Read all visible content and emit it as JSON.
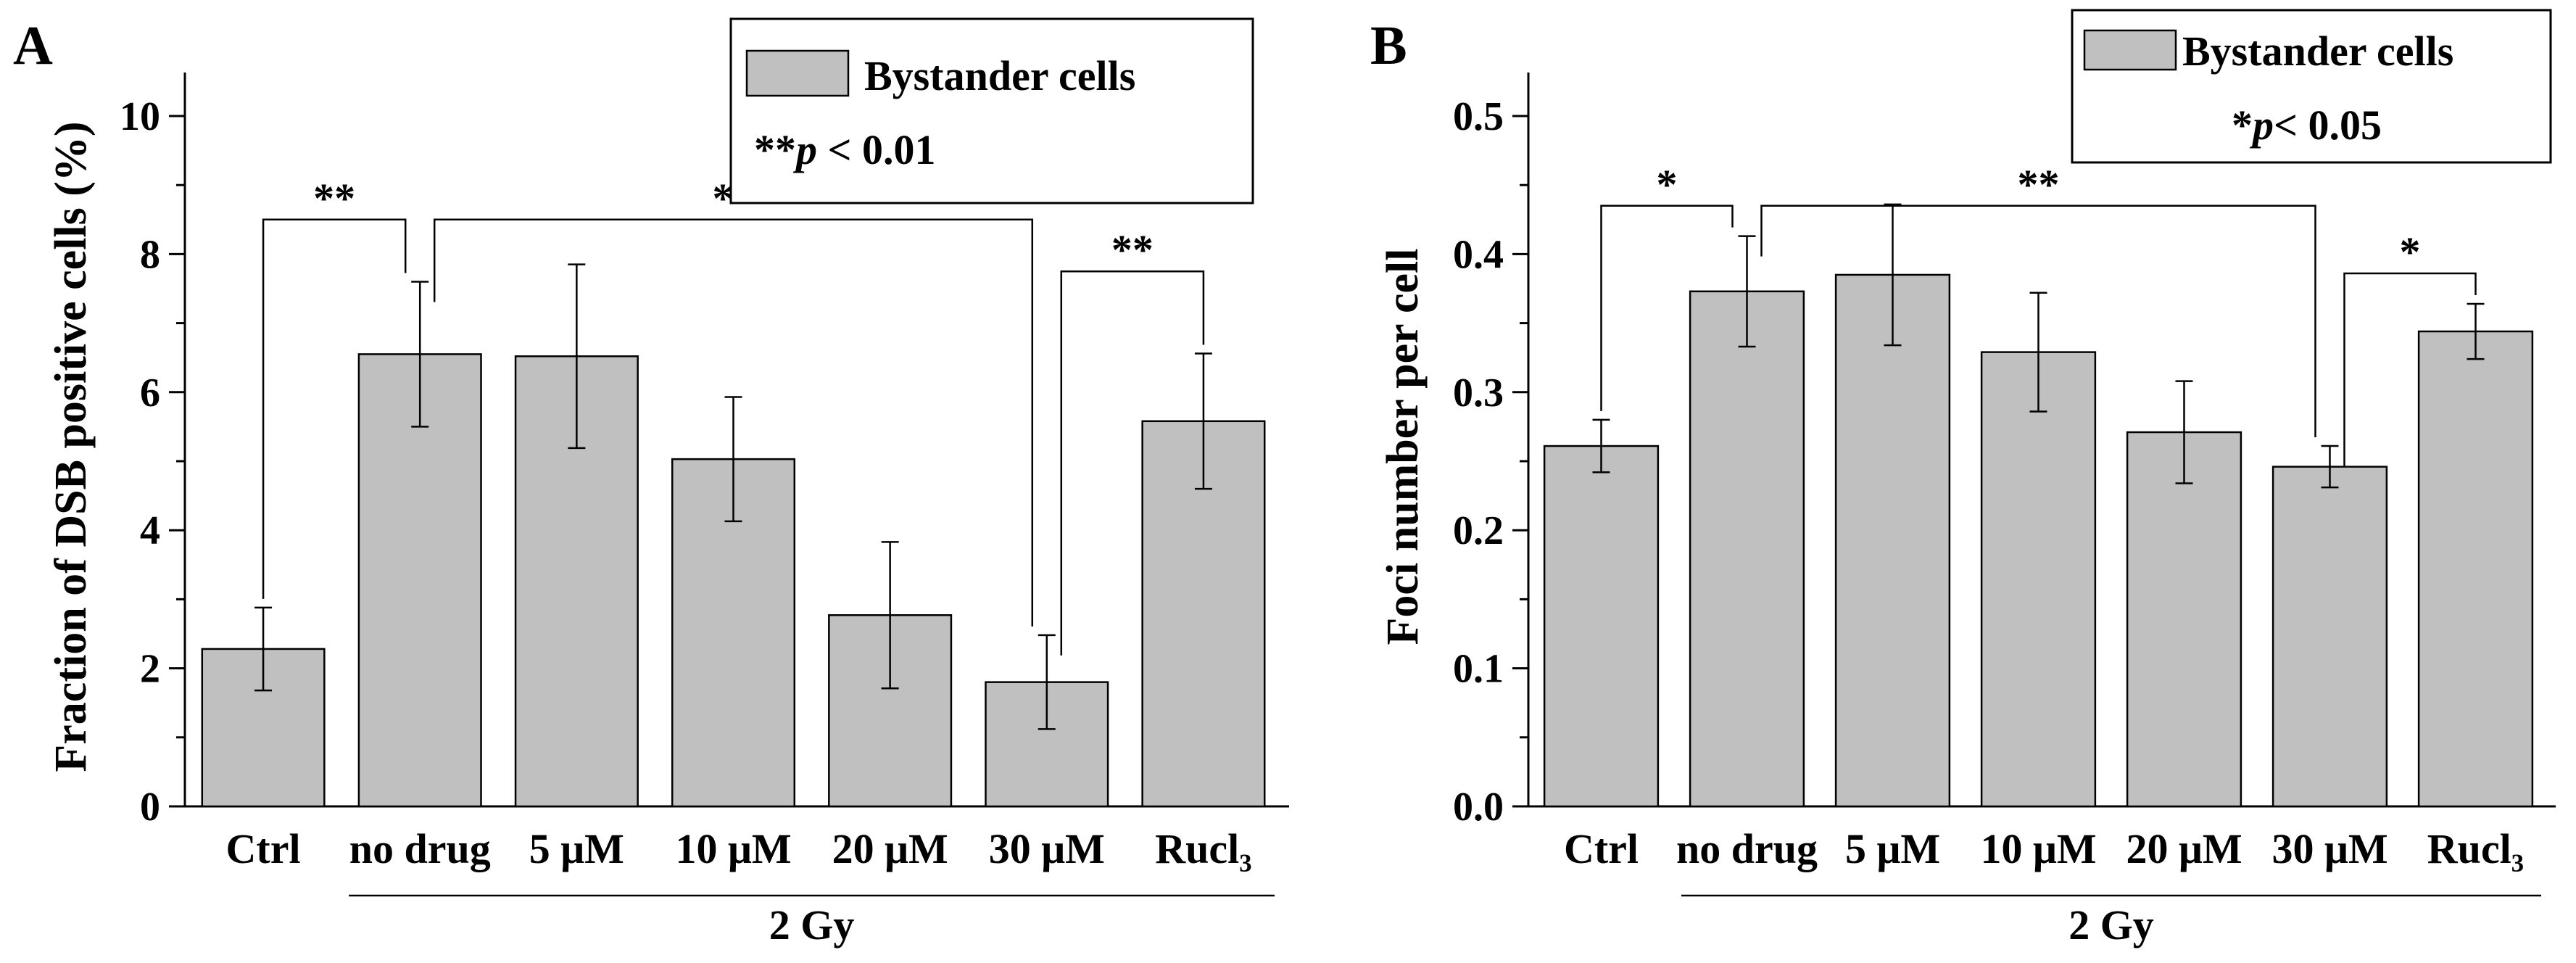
{
  "chart_data": [
    {
      "type": "bar",
      "panel": "A",
      "ylabel": "Fraction of DSB positive cells (%)",
      "ylim": [
        0,
        10
      ],
      "yticks": [
        0,
        2,
        4,
        6,
        8,
        10
      ],
      "tick_labels": [
        "0",
        "2",
        "4",
        "6",
        "8",
        "10"
      ],
      "categories": [
        "Ctrl",
        "no drug",
        "5 μM",
        "10 μM",
        "20 μM",
        "30 μM",
        "Rucl₃"
      ],
      "values": [
        2.28,
        6.55,
        6.52,
        5.03,
        2.77,
        1.8,
        5.58
      ],
      "errors": [
        0.6,
        1.05,
        1.33,
        0.9,
        1.06,
        0.68,
        0.98
      ],
      "group_label": "2 Gy",
      "group_range": [
        1,
        6
      ],
      "legend": {
        "series": "Bystander cells",
        "note_stars": "**",
        "note_p": "p",
        "note_rest": " < 0.01"
      },
      "significance": [
        {
          "from": 0,
          "to": 1,
          "label": "**",
          "level": 8.5
        },
        {
          "from": 1,
          "to": 5,
          "label": "**",
          "level": 8.5
        },
        {
          "from": 5,
          "to": 6,
          "label": "**",
          "level": 7.75
        }
      ]
    },
    {
      "type": "bar",
      "panel": "B",
      "ylabel": "Foci number per cell",
      "ylim": [
        0,
        0.5
      ],
      "yticks": [
        0,
        0.1,
        0.2,
        0.3,
        0.4,
        0.5
      ],
      "tick_labels": [
        "0.0",
        "0.1",
        "0.2",
        "0.3",
        "0.4",
        "0.5"
      ],
      "categories": [
        "Ctrl",
        "no drug",
        "5 μM",
        "10 μM",
        "20 μM",
        "30 μM",
        "Rucl₃"
      ],
      "values": [
        0.261,
        0.373,
        0.385,
        0.329,
        0.271,
        0.246,
        0.344
      ],
      "errors": [
        0.019,
        0.04,
        0.051,
        0.043,
        0.037,
        0.015,
        0.02
      ],
      "group_label": "2 Gy",
      "group_range": [
        1,
        6
      ],
      "legend": {
        "series": "Bystander cells",
        "note_stars": "*",
        "note_p": "p",
        "note_rest": "< 0.05"
      },
      "significance": [
        {
          "from": 0,
          "to": 1,
          "label": "*",
          "level": 0.435
        },
        {
          "from": 1,
          "to": 5,
          "label": "**",
          "level": 0.435
        },
        {
          "from": 5,
          "to": 6,
          "label": "*",
          "level": 0.386
        }
      ]
    }
  ]
}
